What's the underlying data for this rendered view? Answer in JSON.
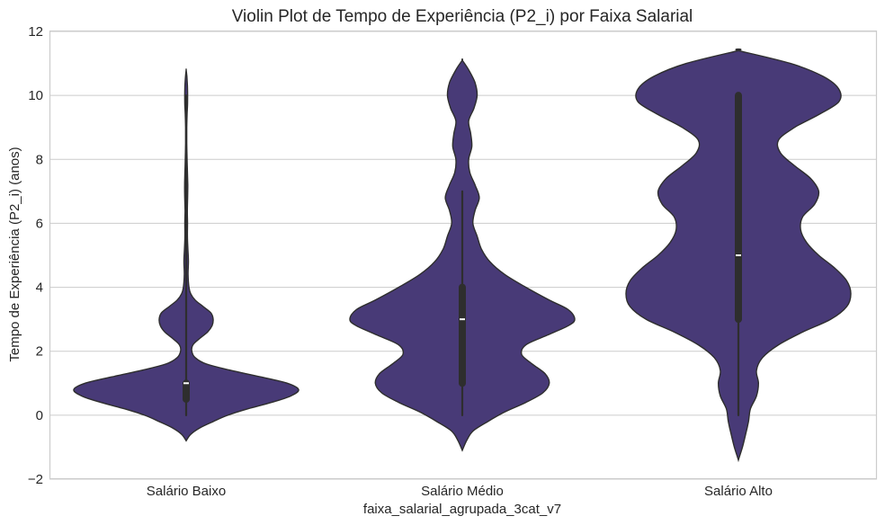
{
  "chart_data": {
    "type": "violin",
    "title": "Violin Plot de Tempo de Experiência (P2_i) por Faixa Salarial",
    "xlabel": "faixa_salarial_agrupada_3cat_v7",
    "ylabel": "Tempo de Experiência (P2_i) (anos)",
    "ylim": [
      -2,
      12
    ],
    "yticks": [
      -2,
      0,
      2,
      4,
      6,
      8,
      10,
      12
    ],
    "ytick_labels": [
      "−2",
      "0",
      "2",
      "4",
      "6",
      "8",
      "10",
      "12"
    ],
    "grid": true,
    "color": "#483a77",
    "categories": [
      "Salário Baixo",
      "Salário Médio",
      "Salário Alto"
    ],
    "violins": [
      {
        "category": "Salário Baixo",
        "min": 0,
        "q1": 0.5,
        "median": 1,
        "q3": 1,
        "max": 10,
        "density": [
          [
            -0.8,
            0
          ],
          [
            -0.6,
            0.04
          ],
          [
            -0.4,
            0.12
          ],
          [
            -0.2,
            0.24
          ],
          [
            0,
            0.37
          ],
          [
            0.2,
            0.55
          ],
          [
            0.4,
            0.76
          ],
          [
            0.6,
            0.93
          ],
          [
            0.8,
            1.0
          ],
          [
            1.0,
            0.9
          ],
          [
            1.2,
            0.66
          ],
          [
            1.4,
            0.4
          ],
          [
            1.6,
            0.18
          ],
          [
            1.8,
            0.08
          ],
          [
            2.0,
            0.05
          ],
          [
            2.2,
            0.06
          ],
          [
            2.4,
            0.12
          ],
          [
            2.6,
            0.19
          ],
          [
            2.8,
            0.23
          ],
          [
            3.0,
            0.24
          ],
          [
            3.2,
            0.22
          ],
          [
            3.4,
            0.15
          ],
          [
            3.6,
            0.08
          ],
          [
            3.8,
            0.04
          ],
          [
            4.0,
            0.025
          ],
          [
            4.4,
            0.017
          ],
          [
            4.8,
            0.02
          ],
          [
            5.2,
            0.015
          ],
          [
            5.6,
            0.011
          ],
          [
            6.0,
            0.012
          ],
          [
            6.4,
            0.01
          ],
          [
            6.8,
            0.013
          ],
          [
            7.2,
            0.014
          ],
          [
            7.6,
            0.011
          ],
          [
            8.0,
            0.008
          ],
          [
            8.5,
            0.005
          ],
          [
            9.0,
            0.005
          ],
          [
            9.4,
            0.008
          ],
          [
            9.7,
            0.012
          ],
          [
            10.0,
            0.013
          ],
          [
            10.3,
            0.011
          ],
          [
            10.6,
            0.006
          ],
          [
            10.8,
            0
          ]
        ]
      },
      {
        "category": "Salário Médio",
        "min": 0,
        "q1": 1,
        "median": 3,
        "q3": 4,
        "max": 7,
        "density": [
          [
            -1.1,
            0
          ],
          [
            -0.8,
            0.02
          ],
          [
            -0.5,
            0.05
          ],
          [
            -0.2,
            0.12
          ],
          [
            0.1,
            0.2
          ],
          [
            0.4,
            0.3
          ],
          [
            0.7,
            0.38
          ],
          [
            1.0,
            0.41
          ],
          [
            1.3,
            0.39
          ],
          [
            1.6,
            0.33
          ],
          [
            1.9,
            0.28
          ],
          [
            2.2,
            0.3
          ],
          [
            2.5,
            0.4
          ],
          [
            2.8,
            0.5
          ],
          [
            3.0,
            0.53
          ],
          [
            3.3,
            0.5
          ],
          [
            3.6,
            0.41
          ],
          [
            4.0,
            0.3
          ],
          [
            4.4,
            0.2
          ],
          [
            4.8,
            0.13
          ],
          [
            5.2,
            0.09
          ],
          [
            5.6,
            0.07
          ],
          [
            6.0,
            0.05
          ],
          [
            6.4,
            0.06
          ],
          [
            6.8,
            0.08
          ],
          [
            7.2,
            0.06
          ],
          [
            7.6,
            0.035
          ],
          [
            8.0,
            0.03
          ],
          [
            8.4,
            0.045
          ],
          [
            8.8,
            0.04
          ],
          [
            9.2,
            0.03
          ],
          [
            9.6,
            0.055
          ],
          [
            10.0,
            0.07
          ],
          [
            10.4,
            0.06
          ],
          [
            10.8,
            0.03
          ],
          [
            11.1,
            0
          ]
        ]
      },
      {
        "category": "Salário Alto",
        "min": 0,
        "q1": 3,
        "median": 5,
        "q3": 10,
        "max": 10,
        "density": [
          [
            -1.4,
            0
          ],
          [
            -1.0,
            0.01
          ],
          [
            -0.6,
            0.018
          ],
          [
            -0.2,
            0.025
          ],
          [
            0.2,
            0.03
          ],
          [
            0.6,
            0.045
          ],
          [
            1.0,
            0.05
          ],
          [
            1.4,
            0.045
          ],
          [
            1.8,
            0.06
          ],
          [
            2.2,
            0.1
          ],
          [
            2.6,
            0.16
          ],
          [
            3.0,
            0.23
          ],
          [
            3.4,
            0.27
          ],
          [
            3.8,
            0.28
          ],
          [
            4.2,
            0.27
          ],
          [
            4.6,
            0.24
          ],
          [
            5.0,
            0.2
          ],
          [
            5.4,
            0.17
          ],
          [
            5.8,
            0.155
          ],
          [
            6.2,
            0.16
          ],
          [
            6.6,
            0.19
          ],
          [
            7.0,
            0.2
          ],
          [
            7.4,
            0.18
          ],
          [
            7.8,
            0.14
          ],
          [
            8.2,
            0.105
          ],
          [
            8.6,
            0.1
          ],
          [
            9.0,
            0.14
          ],
          [
            9.4,
            0.2
          ],
          [
            9.8,
            0.25
          ],
          [
            10.2,
            0.25
          ],
          [
            10.6,
            0.21
          ],
          [
            11.0,
            0.13
          ],
          [
            11.4,
            0
          ]
        ]
      }
    ]
  }
}
